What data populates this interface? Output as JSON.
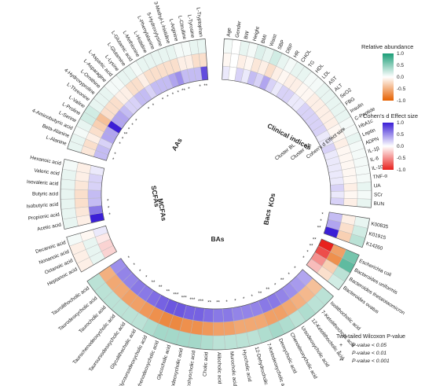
{
  "chart_data": {
    "type": "heatmap",
    "layout": "circular",
    "columns": [
      "Cluster BL",
      "Cluster BA",
      "Cohen's d Effect size"
    ],
    "rings": [
      "Cluster BL",
      "Cluster BA",
      "Cohen's d Effect size"
    ],
    "center_label": "",
    "groups": [
      {
        "name": "Clinical indices",
        "variables": [
          "Age",
          "Gender",
          "BW",
          "Height",
          "BMI",
          "Waist",
          "SBP",
          "DBP",
          "HR",
          "CHOL",
          "TG",
          "HDL",
          "LDL",
          "AST",
          "ALT",
          "SeO2",
          "FBG",
          "Insulin",
          "C-Peptide",
          "HbA1c",
          "Leptin",
          "ADPN",
          "IL-1β",
          "IL-6",
          "IL-10",
          "TNF-α",
          "UA",
          "SCr",
          "BUN"
        ],
        "bl": [
          0.05,
          0,
          0.1,
          0.05,
          0.15,
          0.1,
          0.2,
          0.1,
          0.05,
          0.1,
          0.1,
          0.05,
          0.05,
          0.1,
          0.1,
          0.1,
          0.1,
          0.1,
          0.05,
          0.05,
          0.1,
          0.05,
          0.05,
          0.05,
          0.05,
          0.05,
          0.1,
          0.05,
          0.1
        ],
        "ba": [
          -0.05,
          0,
          -0.1,
          -0.05,
          -0.15,
          -0.1,
          -0.2,
          -0.1,
          -0.05,
          -0.1,
          -0.1,
          -0.05,
          -0.05,
          -0.1,
          -0.1,
          -0.1,
          -0.1,
          -0.1,
          -0.05,
          -0.05,
          -0.1,
          -0.05,
          -0.05,
          -0.05,
          -0.05,
          -0.05,
          -0.1,
          -0.05,
          -0.1
        ],
        "d": [
          0.1,
          0,
          0.2,
          0.1,
          0.3,
          0.2,
          0.4,
          0.2,
          0.1,
          0.2,
          0.2,
          0.1,
          0.1,
          0.2,
          0.2,
          0.2,
          0.2,
          0.2,
          0.1,
          0.1,
          0.2,
          0.1,
          0.1,
          0.1,
          0.1,
          0.1,
          0.2,
          0.1,
          0.2
        ],
        "sig": [
          "",
          "",
          "",
          "",
          "",
          "",
          "",
          "",
          "",
          "",
          "",
          "",
          "",
          "",
          "",
          "",
          "",
          "",
          "",
          "",
          "",
          "",
          "",
          "",
          "",
          "",
          "",
          "",
          ""
        ]
      },
      {
        "name": "KOs",
        "variables": [
          "K00835",
          "K01915",
          "K14260"
        ],
        "bl": [
          0.1,
          0.2,
          0.3
        ],
        "ba": [
          -0.1,
          -0.2,
          -0.3
        ],
        "d": [
          0.3,
          0.4,
          1.2
        ],
        "sig": [
          "*",
          "*",
          "**"
        ]
      },
      {
        "name": "Bacs",
        "variables": [
          "Escherichia coli",
          "Bacteroides uniformis",
          "Bacteroides thetaiotaomicron",
          "Bacteroides ovatus"
        ],
        "bl": [
          0.6,
          0.7,
          0.3,
          0.2
        ],
        "ba": [
          -0.6,
          -0.7,
          -0.3,
          -0.2
        ],
        "d": [
          -1.1,
          -0.8,
          -0.5,
          -0.3
        ],
        "sig": [
          "**",
          "**",
          "*",
          "*"
        ]
      },
      {
        "name": "BAs",
        "variables": [
          "Isolithocholic acid",
          "7-Ketolithocholic acid",
          "12-Ketolithocholic acid",
          "Ursodeoxycholic acid",
          "Chenodeoxycholic acid",
          "Deoxycholic acid",
          "7-Ketodeoxycholic acid",
          "12-Dehydrocholic acid",
          "Hyocholic acid",
          "Murocholic acid",
          "Allocholic acid",
          "Cholic acid",
          "Glycohyocholic acid",
          "Glycodeoxycholic acid",
          "Glycocholic acid",
          "Glycochenodeoxycholic acid",
          "Glycoursodeoxycholic acid",
          "Glycolithocholic acid",
          "Tauroursodeoxycholic acid",
          "Taurochenodeoxycholic acid",
          "Taurocholic acid",
          "Taurodeoxycholic acid",
          "Taurolithocholic acid"
        ],
        "bl": [
          0.3,
          0.3,
          0.35,
          0.3,
          0.35,
          0.4,
          0.35,
          0.3,
          0.3,
          0.3,
          0.3,
          0.35,
          0.4,
          0.4,
          0.4,
          0.4,
          0.35,
          0.3,
          0.3,
          0.3,
          0.3,
          0.3,
          0.3
        ],
        "ba": [
          -0.4,
          -0.45,
          -0.5,
          -0.55,
          -0.6,
          -0.6,
          -0.55,
          -0.55,
          -0.55,
          -0.6,
          -0.6,
          -0.65,
          -0.7,
          -0.7,
          -0.75,
          -0.75,
          -0.7,
          -0.65,
          -0.6,
          -0.6,
          -0.55,
          -0.55,
          -0.5
        ],
        "d": [
          0.4,
          0.45,
          0.5,
          0.55,
          0.6,
          0.6,
          0.55,
          0.55,
          0.55,
          0.6,
          0.6,
          0.65,
          0.7,
          0.7,
          0.75,
          0.75,
          0.7,
          0.65,
          0.6,
          0.6,
          0.55,
          0.55,
          0.5
        ],
        "sig": [
          "*",
          "*",
          "**",
          "*",
          "**",
          "**",
          "*",
          "*",
          "*",
          "*",
          "**",
          "**",
          "***",
          "***",
          "***",
          "***",
          "**",
          "**",
          "**",
          "*",
          "*",
          "*",
          "*"
        ]
      },
      {
        "name": "MCFAs",
        "variables": [
          "Heptanoic acid",
          "Octanoic acid",
          "Nonanoic acid",
          "Decanoic acid"
        ],
        "bl": [
          -0.1,
          -0.1,
          -0.1,
          0.05
        ],
        "ba": [
          0.1,
          0.1,
          0.1,
          -0.05
        ],
        "d": [
          -0.2,
          -0.2,
          -0.1,
          0.1
        ],
        "sig": [
          "",
          "",
          "",
          ""
        ]
      },
      {
        "name": "SCFAs",
        "variables": [
          "Acetic acid",
          "Propionic acid",
          "Isobutyric acid",
          "Butyric acid",
          "Isovaleric acid",
          "Valeric acid",
          "Hexanoic acid"
        ],
        "bl": [
          0.1,
          0.1,
          0.1,
          0.1,
          0.1,
          0.1,
          0.05
        ],
        "ba": [
          -0.1,
          -0.15,
          -0.2,
          -0.2,
          -0.15,
          -0.1,
          -0.1
        ],
        "d": [
          1.2,
          0.6,
          0.3,
          0.3,
          0.2,
          0.2,
          0.1
        ],
        "sig": [
          "*",
          "*",
          "*",
          "",
          "",
          "",
          ""
        ]
      },
      {
        "name": "AAs",
        "variables": [
          "L-Alanine",
          "Beta-Alanine",
          "4-Aminobutyric acid",
          "L-Serine",
          "L-Proline",
          "L-Valine",
          "L-Threonine",
          "4-Hydroxyproline",
          "L-Ornithine",
          "L-Asparagine",
          "L-Aspartic acid",
          "L-Lysine",
          "L-Glutamine",
          "L-Glutamic acid",
          "L-Methionine",
          "L-Histidine",
          "L-Phenylalanine",
          "5-Hydroxylysine",
          "3-Methyl-L-histidine",
          "L-Arginine",
          "L-Citrulline",
          "L-Tyrosine",
          "L-Tryptophan"
        ],
        "bl": [
          0.1,
          0.1,
          0.05,
          0.1,
          0.2,
          0.2,
          0.1,
          0.1,
          0.1,
          0.05,
          0.05,
          0.1,
          0.1,
          0.05,
          0.1,
          0.1,
          0.1,
          0.1,
          0.1,
          0.05,
          0.05,
          0.1,
          0.1
        ],
        "ba": [
          -0.15,
          -0.2,
          -0.1,
          -0.2,
          -0.3,
          -0.4,
          -0.2,
          -0.2,
          -0.2,
          -0.1,
          -0.1,
          -0.2,
          -0.2,
          -0.1,
          -0.2,
          -0.2,
          -0.2,
          -0.2,
          -0.2,
          -0.1,
          -0.1,
          -0.2,
          -0.2
        ],
        "d": [
          0.3,
          0.3,
          0.2,
          0.4,
          0.4,
          1.1,
          0.4,
          0.4,
          0.3,
          0.2,
          0.2,
          0.3,
          0.3,
          0.2,
          0.3,
          0.3,
          0.3,
          0.4,
          0.5,
          0.3,
          0.3,
          0.3,
          0.8
        ],
        "sig": [
          "*",
          "*",
          "",
          "*",
          "*",
          "**",
          "*",
          "*",
          "*",
          "",
          "",
          "*",
          "*",
          "",
          "*",
          "*",
          "*",
          "*",
          "**",
          "*",
          "",
          "*",
          "**"
        ]
      }
    ],
    "legend_abundance": {
      "title": "Relative abundance",
      "ticks": [
        "1.0",
        "0.5",
        "0.0",
        "-0.5",
        "-1.0"
      ],
      "colors": {
        "high": "#1b9e77",
        "mid": "#ffffff",
        "low": "#e66101"
      }
    },
    "legend_effect": {
      "title": "Cohen's d Effect size",
      "ticks": [
        "1.0",
        "0.5",
        "0.0",
        "-0.5",
        "-1.0"
      ],
      "colors": {
        "high": "#3b1fd6",
        "mid": "#ffffff",
        "low": "#e8211d"
      }
    },
    "sig_legend": {
      "title": "Two-tailed Wilcoxon P-value",
      "items": [
        {
          "symbol": "+",
          "text": "P-value < 0.05"
        },
        {
          "symbol": "*",
          "text": "P-value < 0.01"
        },
        {
          "symbol": "**",
          "text": "P-value < 0.001"
        }
      ]
    }
  }
}
